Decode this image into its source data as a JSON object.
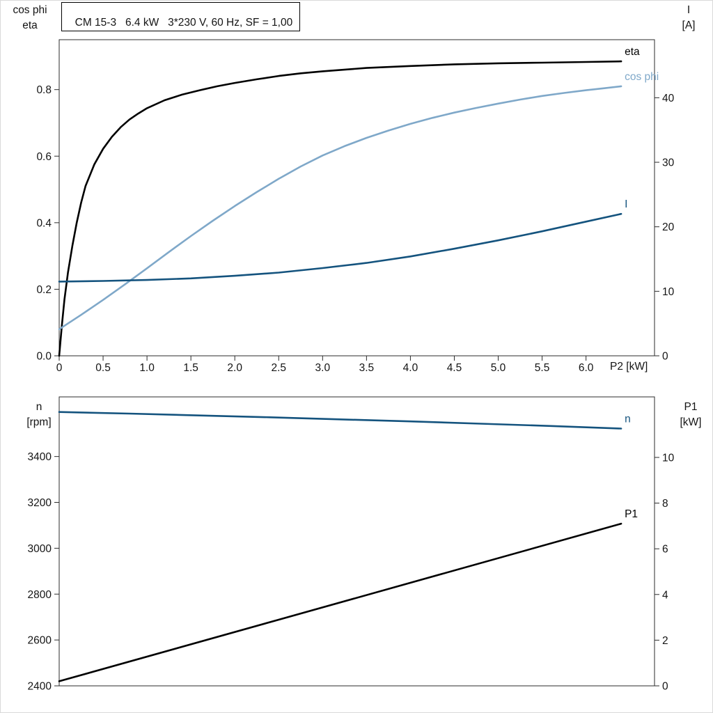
{
  "chart_data": [
    {
      "type": "line",
      "title": "CM 15-3   6.4 kW   3*230 V, 60 Hz, SF = 1,00",
      "grid": false,
      "x_axis": {
        "label": "P2 [kW]",
        "range": [
          0,
          6.78
        ],
        "ticks": [
          0,
          0.5,
          1.0,
          1.5,
          2.0,
          2.5,
          3.0,
          3.5,
          4.0,
          4.5,
          5.0,
          5.5,
          6.0
        ],
        "tick_labels": [
          "0",
          "0.5",
          "1.0",
          "1.5",
          "2.0",
          "2.5",
          "3.0",
          "3.5",
          "4.0",
          "4.5",
          "5.0",
          "5.5",
          "6.0"
        ]
      },
      "y_left": {
        "label": "cos phi\neta",
        "range": [
          0,
          0.95
        ],
        "ticks": [
          0.0,
          0.2,
          0.4,
          0.6,
          0.8
        ],
        "tick_labels": [
          "0.0",
          "0.2",
          "0.4",
          "0.6",
          "0.8"
        ]
      },
      "y_right": {
        "label": "I\n[A]",
        "range": [
          0,
          49
        ],
        "ticks": [
          0,
          10,
          20,
          30,
          40
        ],
        "tick_labels": [
          "0",
          "10",
          "20",
          "30",
          "40"
        ]
      },
      "series": [
        {
          "name": "eta",
          "axis": "left",
          "color": "#000000",
          "x": [
            0,
            0.03,
            0.06,
            0.1,
            0.15,
            0.2,
            0.25,
            0.3,
            0.4,
            0.5,
            0.6,
            0.7,
            0.8,
            0.9,
            1.0,
            1.2,
            1.4,
            1.6,
            1.8,
            2.0,
            2.25,
            2.5,
            2.75,
            3.0,
            3.5,
            4.0,
            4.5,
            5.0,
            5.5,
            6.0,
            6.4
          ],
          "values": [
            0,
            0.09,
            0.17,
            0.25,
            0.33,
            0.4,
            0.46,
            0.51,
            0.575,
            0.622,
            0.658,
            0.687,
            0.71,
            0.728,
            0.744,
            0.768,
            0.785,
            0.798,
            0.81,
            0.82,
            0.831,
            0.841,
            0.849,
            0.855,
            0.865,
            0.871,
            0.876,
            0.879,
            0.881,
            0.883,
            0.885
          ]
        },
        {
          "name": "cos phi",
          "axis": "left",
          "color": "#7fa8c9",
          "x": [
            0,
            0.25,
            0.5,
            0.75,
            1.0,
            1.25,
            1.5,
            1.75,
            2.0,
            2.25,
            2.5,
            2.75,
            3.0,
            3.25,
            3.5,
            3.75,
            4.0,
            4.25,
            4.5,
            4.75,
            5.0,
            5.25,
            5.5,
            5.75,
            6.0,
            6.2,
            6.4
          ],
          "values": [
            0.08,
            0.123,
            0.168,
            0.215,
            0.263,
            0.312,
            0.36,
            0.406,
            0.45,
            0.492,
            0.532,
            0.569,
            0.602,
            0.63,
            0.655,
            0.677,
            0.697,
            0.715,
            0.731,
            0.745,
            0.758,
            0.77,
            0.781,
            0.79,
            0.798,
            0.804,
            0.81
          ]
        },
        {
          "name": "I",
          "axis": "right",
          "color": "#14537e",
          "x": [
            0,
            0.5,
            1.0,
            1.5,
            2.0,
            2.5,
            3.0,
            3.5,
            4.0,
            4.5,
            5.0,
            5.5,
            6.0,
            6.4
          ],
          "values": [
            11.5,
            11.6,
            11.75,
            12.0,
            12.4,
            12.9,
            13.6,
            14.4,
            15.4,
            16.6,
            17.9,
            19.3,
            20.8,
            22.0
          ]
        }
      ]
    },
    {
      "type": "line",
      "title": "",
      "grid": false,
      "x_axis": {
        "label": "",
        "range": [
          0,
          6.78
        ],
        "ticks": [],
        "tick_labels": []
      },
      "y_left": {
        "label": "n\n[rpm]",
        "range": [
          2400,
          3660
        ],
        "ticks": [
          2400,
          2600,
          2800,
          3000,
          3200,
          3400
        ],
        "tick_labels": [
          "2400",
          "2600",
          "2800",
          "3000",
          "3200",
          "3400"
        ]
      },
      "y_right": {
        "label": "P1\n[kW]",
        "range": [
          0,
          12.65
        ],
        "ticks": [
          0,
          2,
          4,
          6,
          8,
          10
        ],
        "tick_labels": [
          "0",
          "2",
          "4",
          "6",
          "8",
          "10"
        ]
      },
      "series": [
        {
          "name": "n",
          "axis": "left",
          "color": "#14537e",
          "x": [
            0,
            0.8,
            1.6,
            2.4,
            3.2,
            4.0,
            4.8,
            5.6,
            6.4
          ],
          "values": [
            3594,
            3587,
            3579,
            3571,
            3562,
            3553,
            3543,
            3533,
            3522
          ]
        },
        {
          "name": "P1",
          "axis": "right",
          "color": "#000000",
          "x": [
            0,
            6.4
          ],
          "values": [
            0.2,
            7.1
          ]
        }
      ]
    }
  ]
}
